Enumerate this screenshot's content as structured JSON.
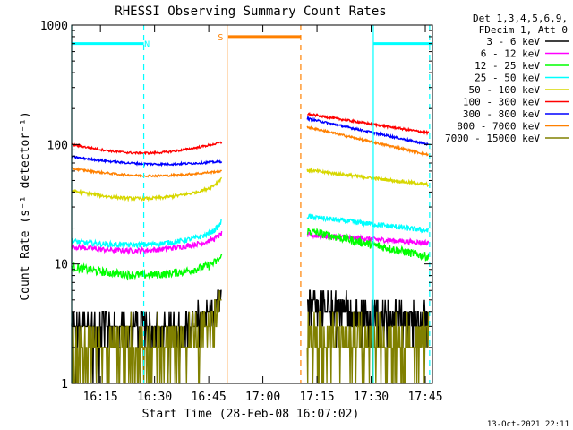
{
  "chart_data": {
    "type": "line",
    "title": "RHESSI Observing Summary Count Rates",
    "xlabel": "Start Time (28-Feb-08 16:07:02)",
    "ylabel": "Count Rate (s⁻¹ detector⁻¹)",
    "yscale": "log",
    "ylim": [
      1,
      1000
    ],
    "xlim": [
      16.117,
      17.783
    ],
    "x_ticks": [
      {
        "t": 16.25,
        "label": "16:15"
      },
      {
        "t": 16.5,
        "label": "16:30"
      },
      {
        "t": 16.75,
        "label": "16:45"
      },
      {
        "t": 17.0,
        "label": "17:00"
      },
      {
        "t": 17.25,
        "label": "17:15"
      },
      {
        "t": 17.5,
        "label": "17:30"
      },
      {
        "t": 17.75,
        "label": "17:45"
      }
    ],
    "y_ticks": [
      {
        "v": 1,
        "label": "1"
      },
      {
        "v": 10,
        "label": "10"
      },
      {
        "v": 100,
        "label": "100"
      },
      {
        "v": 1000,
        "label": "1000"
      }
    ],
    "legend": {
      "title_lines": [
        "Det 1,3,4,5,6,9,",
        "FDecim 1, Att 0"
      ],
      "placement": "right"
    },
    "series": [
      {
        "name": "3 - 6 keV",
        "color": "#000000",
        "seg1": {
          "start": 2.8,
          "end": 3.0,
          "dip": 0,
          "rise": 0.4
        },
        "seg2": {
          "start": 4.5,
          "end": 3.4,
          "dip": 0,
          "rise": 0
        },
        "noise": 0.22
      },
      {
        "name": "6 - 12 keV",
        "color": "#ff00ff",
        "seg1": {
          "start": 14,
          "end": 16,
          "dip": 0.06,
          "rise": 0.05
        },
        "seg2": {
          "start": 17.5,
          "end": 15,
          "dip": 0,
          "rise": 0
        },
        "noise": 0.05
      },
      {
        "name": "12 - 25 keV",
        "color": "#00ff00",
        "seg1": {
          "start": 9.5,
          "end": 10,
          "dip": 0.08,
          "rise": 0.06
        },
        "seg2": {
          "start": 19,
          "end": 11.5,
          "dip": 0,
          "rise": 0
        },
        "noise": 0.08
      },
      {
        "name": "25 - 50 keV",
        "color": "#00ffff",
        "seg1": {
          "start": 15.5,
          "end": 18,
          "dip": 0.06,
          "rise": 0.1
        },
        "seg2": {
          "start": 25,
          "end": 19,
          "dip": 0,
          "rise": 0
        },
        "noise": 0.05
      },
      {
        "name": "50 - 100 keV",
        "color": "#d7d700",
        "seg1": {
          "start": 41,
          "end": 44,
          "dip": 0.08,
          "rise": 0.08
        },
        "seg2": {
          "start": 61,
          "end": 46,
          "dip": 0,
          "rise": 0
        },
        "noise": 0.03
      },
      {
        "name": "100 - 300 keV",
        "color": "#ff0000",
        "seg1": {
          "start": 100,
          "end": 104,
          "dip": 0.08,
          "rise": 0
        },
        "seg2": {
          "start": 180,
          "end": 125,
          "dip": 0,
          "rise": 0
        },
        "noise": 0.02
      },
      {
        "name": "300 - 800 keV",
        "color": "#0000ff",
        "seg1": {
          "start": 79,
          "end": 72,
          "dip": 0.04,
          "rise": 0
        },
        "seg2": {
          "start": 165,
          "end": 100,
          "dip": 0,
          "rise": 0
        },
        "noise": 0.02
      },
      {
        "name": "800 - 7000 keV",
        "color": "#ff8000",
        "seg1": {
          "start": 63,
          "end": 60,
          "dip": 0.05,
          "rise": 0
        },
        "seg2": {
          "start": 140,
          "end": 82,
          "dip": 0,
          "rise": 0
        },
        "noise": 0.02
      },
      {
        "name": "7000 - 15000 keV",
        "color": "#808000",
        "seg1": {
          "start": 1.9,
          "end": 2.6,
          "dip": 0,
          "rise": 0.3
        },
        "seg2": {
          "start": 2.4,
          "end": 2.2,
          "dip": 0,
          "rise": 0
        },
        "noise": 0.22
      }
    ],
    "segments": [
      {
        "t0": 16.117,
        "t1": 16.81
      },
      {
        "t0": 17.205,
        "t1": 17.765
      }
    ],
    "flags": [
      {
        "label": "N",
        "color": "#00ffff",
        "spans": [
          [
            16.117,
            16.45
          ],
          [
            17.51,
            17.783
          ]
        ],
        "level": 700,
        "label_t": 16.465
      },
      {
        "label": "S",
        "color": "#ff8000",
        "spans": [
          [
            16.84,
            17.175
          ]
        ],
        "level": 800,
        "label_t": 16.805
      }
    ],
    "markers": [
      {
        "t": 16.117,
        "color": "#00ffff",
        "style": "solid"
      },
      {
        "t": 16.45,
        "color": "#00ffff",
        "style": "dashed"
      },
      {
        "t": 16.835,
        "color": "#ff8000",
        "style": "solid"
      },
      {
        "t": 17.175,
        "color": "#ff8000",
        "style": "dashed"
      },
      {
        "t": 17.51,
        "color": "#00ffff",
        "style": "solid"
      },
      {
        "t": 17.77,
        "color": "#00ffff",
        "style": "dashed"
      }
    ],
    "footer": "13-Oct-2021 22:11"
  }
}
